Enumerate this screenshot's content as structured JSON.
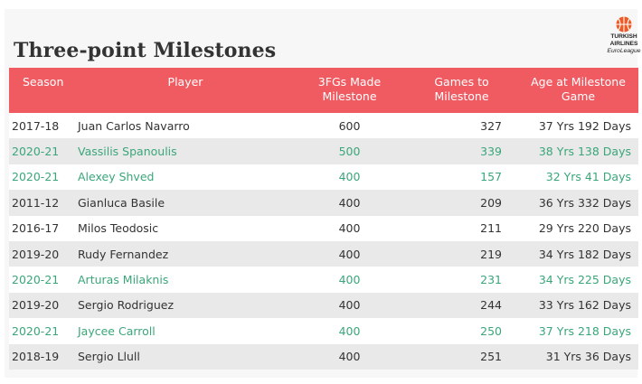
{
  "title": "Three-point Milestones",
  "logo": {
    "icon": "basketball-icon",
    "line1": "TURKISH",
    "line2": "AIRLINES",
    "line3": "EuroLeague",
    "color": "#f05a24"
  },
  "colors": {
    "header": "#f05b62",
    "highlight": "#3aa67a",
    "row_alt": "#e9e9e9"
  },
  "table": {
    "headers": {
      "season": "Season",
      "player": "Player",
      "made_1": "3FGs Made",
      "made_2": "Milestone",
      "games_1": "Games to",
      "games_2": "Milestone",
      "age_1": "Age at Milestone",
      "age_2": "Game"
    },
    "rows": [
      {
        "season": "2017-18",
        "player": "Juan Carlos Navarro",
        "made": "600",
        "games": "327",
        "age": "37 Yrs 192 Days",
        "highlight": false
      },
      {
        "season": "2020-21",
        "player": "Vassilis Spanoulis",
        "made": "500",
        "games": "339",
        "age": "38 Yrs 138 Days",
        "highlight": true
      },
      {
        "season": "2020-21",
        "player": "Alexey Shved",
        "made": "400",
        "games": "157",
        "age": "32 Yrs 41 Days",
        "highlight": true
      },
      {
        "season": "2011-12",
        "player": "Gianluca Basile",
        "made": "400",
        "games": "209",
        "age": "36 Yrs 332 Days",
        "highlight": false
      },
      {
        "season": "2016-17",
        "player": "Milos Teodosic",
        "made": "400",
        "games": "211",
        "age": "29 Yrs 220 Days",
        "highlight": false
      },
      {
        "season": "2019-20",
        "player": "Rudy Fernandez",
        "made": "400",
        "games": "219",
        "age": "34 Yrs 182 Days",
        "highlight": false
      },
      {
        "season": "2020-21",
        "player": "Arturas Milaknis",
        "made": "400",
        "games": "231",
        "age": "34 Yrs 225 Days",
        "highlight": true
      },
      {
        "season": "2019-20",
        "player": "Sergio Rodriguez",
        "made": "400",
        "games": "244",
        "age": "33 Yrs 162 Days",
        "highlight": false
      },
      {
        "season": "2020-21",
        "player": "Jaycee Carroll",
        "made": "400",
        "games": "250",
        "age": "37 Yrs 218 Days",
        "highlight": true
      },
      {
        "season": "2018-19",
        "player": "Sergio Llull",
        "made": "400",
        "games": "251",
        "age": "31 Yrs 36 Days",
        "highlight": false
      }
    ]
  }
}
